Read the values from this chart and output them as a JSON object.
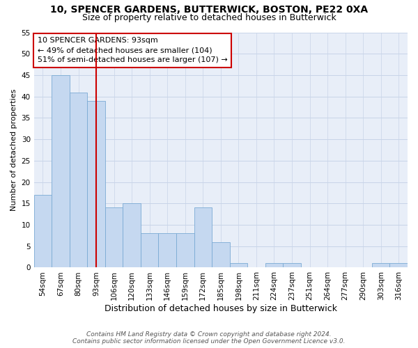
{
  "title_line1": "10, SPENCER GARDENS, BUTTERWICK, BOSTON, PE22 0XA",
  "title_line2": "Size of property relative to detached houses in Butterwick",
  "xlabel": "Distribution of detached houses by size in Butterwick",
  "ylabel": "Number of detached properties",
  "categories": [
    "54sqm",
    "67sqm",
    "80sqm",
    "93sqm",
    "106sqm",
    "120sqm",
    "133sqm",
    "146sqm",
    "159sqm",
    "172sqm",
    "185sqm",
    "198sqm",
    "211sqm",
    "224sqm",
    "237sqm",
    "251sqm",
    "264sqm",
    "277sqm",
    "290sqm",
    "303sqm",
    "316sqm"
  ],
  "values": [
    17,
    45,
    41,
    39,
    14,
    15,
    8,
    8,
    8,
    14,
    6,
    1,
    0,
    1,
    1,
    0,
    0,
    0,
    0,
    1,
    1
  ],
  "bar_color": "#c5d8f0",
  "bar_edgecolor": "#7aaad4",
  "vline_x": 3,
  "vline_color": "#cc0000",
  "annotation_text": "10 SPENCER GARDENS: 93sqm\n← 49% of detached houses are smaller (104)\n51% of semi-detached houses are larger (107) →",
  "annotation_box_edgecolor": "#cc0000",
  "ylim": [
    0,
    55
  ],
  "yticks": [
    0,
    5,
    10,
    15,
    20,
    25,
    30,
    35,
    40,
    45,
    50,
    55
  ],
  "grid_color": "#c8d4e8",
  "bg_color": "#e8eef8",
  "footer_line1": "Contains HM Land Registry data © Crown copyright and database right 2024.",
  "footer_line2": "Contains public sector information licensed under the Open Government Licence v3.0.",
  "title_fontsize": 10,
  "subtitle_fontsize": 9,
  "ylabel_fontsize": 8,
  "xlabel_fontsize": 9,
  "tick_fontsize": 7.5,
  "footer_fontsize": 6.5,
  "annot_fontsize": 8
}
